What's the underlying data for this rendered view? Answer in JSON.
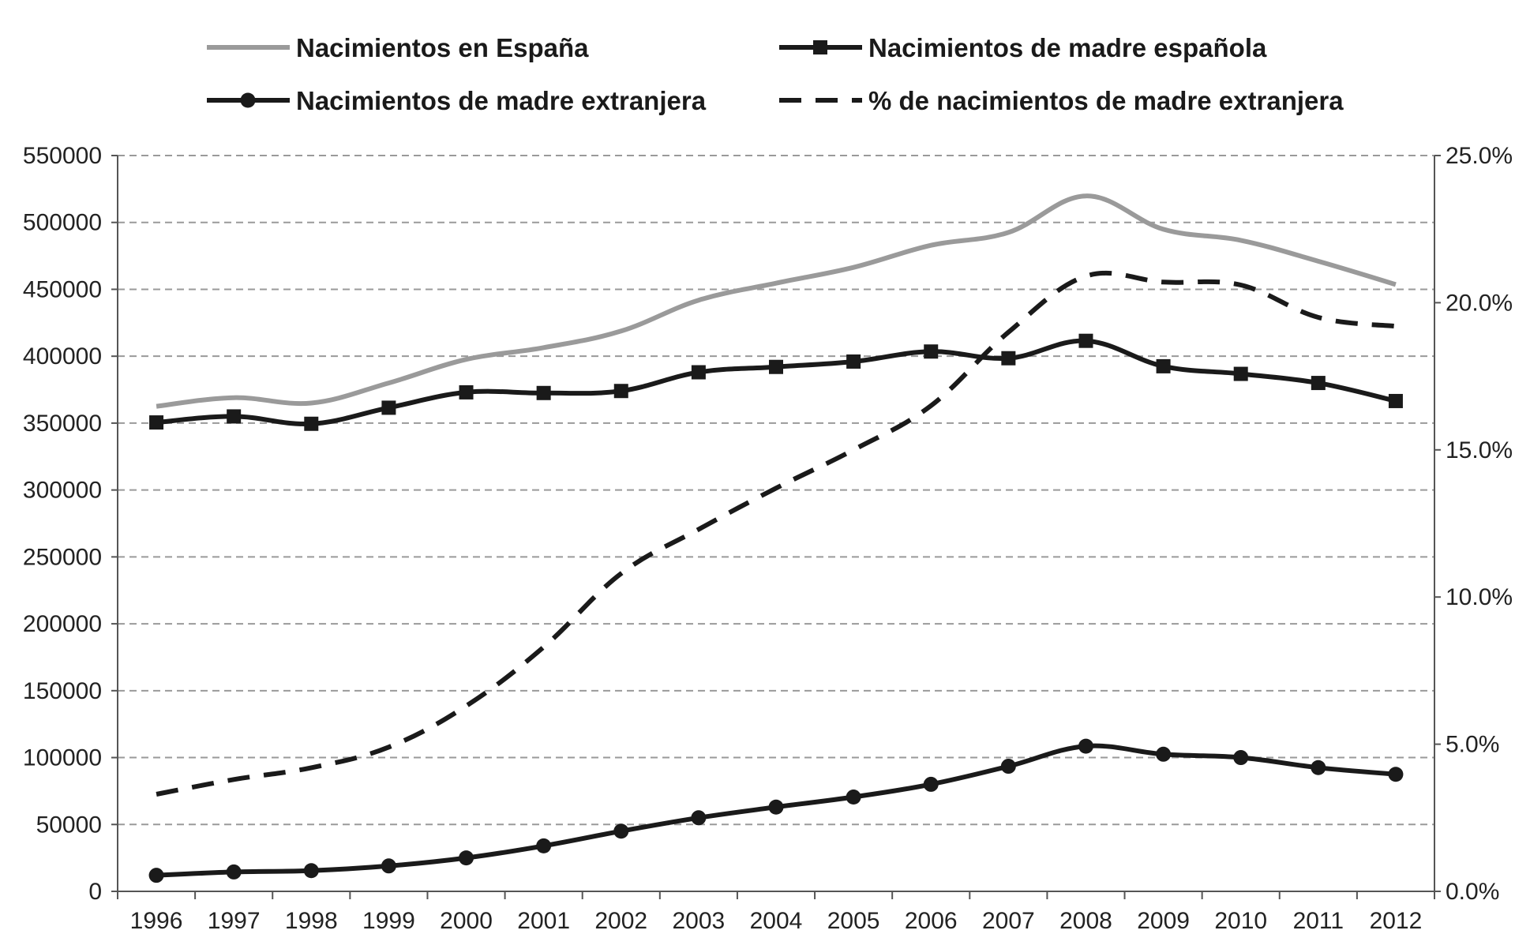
{
  "chart_data": {
    "type": "line",
    "title": "",
    "xlabel": "",
    "ylabel": "",
    "y2label": "",
    "categories": [
      "1996",
      "1997",
      "1998",
      "1999",
      "2000",
      "2001",
      "2002",
      "2003",
      "2004",
      "2005",
      "2006",
      "2007",
      "2008",
      "2009",
      "2010",
      "2011",
      "2012"
    ],
    "ylim": [
      0,
      550000
    ],
    "y2lim": [
      0,
      25
    ],
    "yticks": [
      "0",
      "50000",
      "100000",
      "150000",
      "200000",
      "250000",
      "300000",
      "350000",
      "400000",
      "450000",
      "500000",
      "550000"
    ],
    "y2ticks": [
      "0.0%",
      "5.0%",
      "10.0%",
      "15.0%",
      "20.0%",
      "25.0%"
    ],
    "grid": "horizontal-dashed",
    "legend_position": "top",
    "series": [
      {
        "name": "Nacimientos en España",
        "axis": "left",
        "style": "solid-gray",
        "color": "#9a9a9a",
        "values": [
          362600,
          369000,
          365000,
          380000,
          397600,
          406400,
          418800,
          441900,
          454600,
          466400,
          482900,
          492500,
          519800,
          494900,
          486600,
          471000,
          453600
        ]
      },
      {
        "name": "Nacimientos de madre española",
        "axis": "left",
        "style": "solid-square-markers",
        "color": "#1a1a1a",
        "values": [
          350500,
          355000,
          349500,
          361500,
          373000,
          372500,
          374000,
          388000,
          392000,
          396000,
          403500,
          398500,
          411500,
          392500,
          386800,
          380000,
          366500
        ]
      },
      {
        "name": "Nacimientos de madre extranjera",
        "axis": "left",
        "style": "solid-circle-markers",
        "color": "#1a1a1a",
        "values": [
          12000,
          14500,
          15500,
          19000,
          25000,
          34000,
          45000,
          55000,
          63000,
          70500,
          80000,
          93500,
          108500,
          102500,
          100000,
          92500,
          87500
        ]
      },
      {
        "name": "% de nacimientos de madre extranjera",
        "axis": "right",
        "style": "dashed",
        "color": "#1a1a1a",
        "values": [
          3.3,
          3.8,
          4.2,
          4.9,
          6.3,
          8.3,
          10.8,
          12.3,
          13.7,
          15.0,
          16.5,
          19.0,
          20.9,
          20.7,
          20.6,
          19.5,
          19.2
        ]
      }
    ]
  }
}
